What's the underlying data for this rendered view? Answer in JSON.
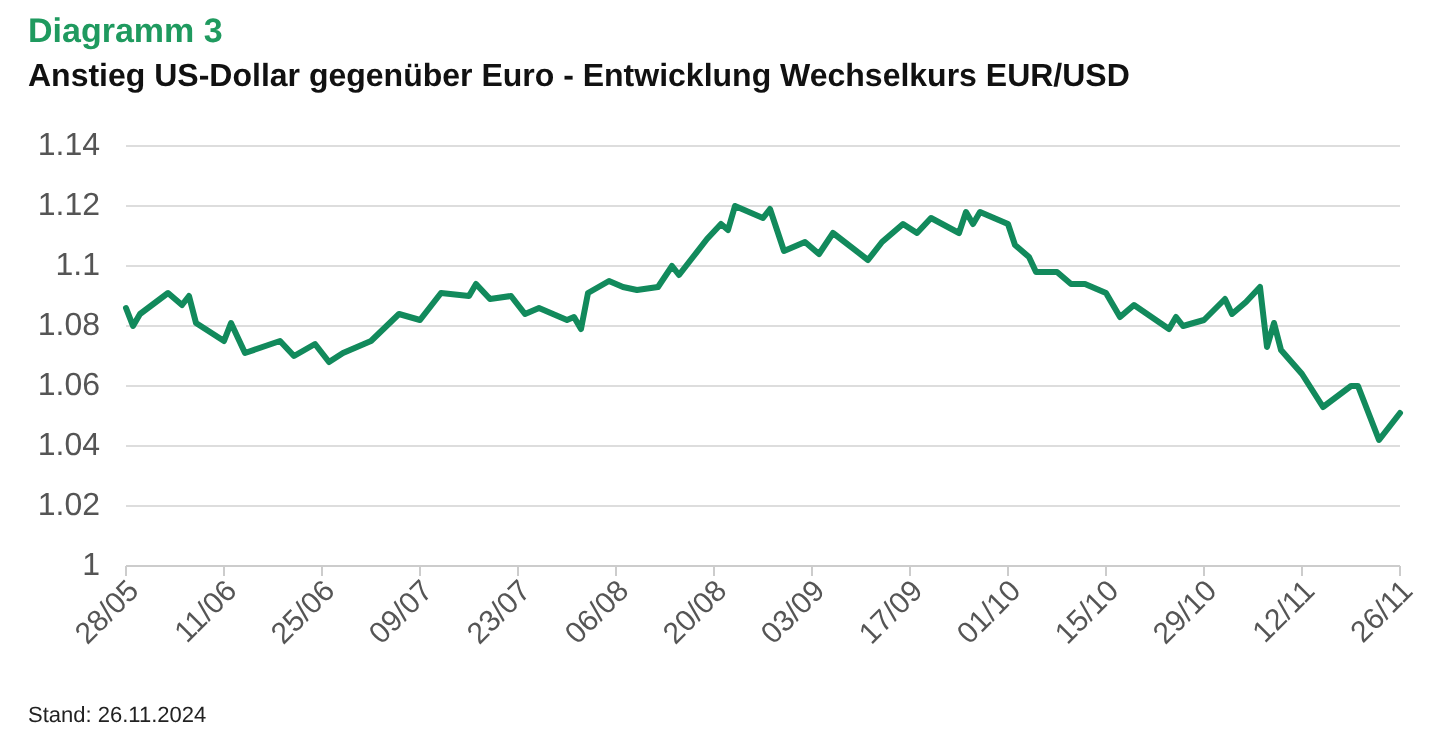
{
  "chart_data": {
    "type": "line",
    "title": "Diagramm 3",
    "subtitle": "Anstieg US-Dollar gegenüber Euro - Entwicklung Wechselkurs EUR/USD",
    "annotations": [
      "Stand: 26.11.2024"
    ],
    "x": [
      "2024-05-28",
      "2024-05-29",
      "2024-05-30",
      "2024-06-03",
      "2024-06-05",
      "2024-06-06",
      "2024-06-07",
      "2024-06-11",
      "2024-06-12",
      "2024-06-14",
      "2024-06-19",
      "2024-06-21",
      "2024-06-24",
      "2024-06-26",
      "2024-06-28",
      "2024-07-02",
      "2024-07-06",
      "2024-07-09",
      "2024-07-12",
      "2024-07-16",
      "2024-07-17",
      "2024-07-19",
      "2024-07-22",
      "2024-07-24",
      "2024-07-26",
      "2024-07-30",
      "2024-07-31",
      "2024-08-01",
      "2024-08-02",
      "2024-08-05",
      "2024-08-07",
      "2024-08-09",
      "2024-08-12",
      "2024-08-14",
      "2024-08-15",
      "2024-08-17",
      "2024-08-19",
      "2024-08-21",
      "2024-08-22",
      "2024-08-23",
      "2024-08-27",
      "2024-08-28",
      "2024-08-30",
      "2024-09-02",
      "2024-09-04",
      "2024-09-06",
      "2024-09-11",
      "2024-09-13",
      "2024-09-16",
      "2024-09-18",
      "2024-09-20",
      "2024-09-24",
      "2024-09-25",
      "2024-09-26",
      "2024-09-27",
      "2024-10-01",
      "2024-10-02",
      "2024-10-04",
      "2024-10-05",
      "2024-10-08",
      "2024-10-10",
      "2024-10-12",
      "2024-10-15",
      "2024-10-17",
      "2024-10-19",
      "2024-10-24",
      "2024-10-25",
      "2024-10-26",
      "2024-10-29",
      "2024-11-01",
      "2024-11-02",
      "2024-11-04",
      "2024-11-06",
      "2024-11-07",
      "2024-11-08",
      "2024-11-09",
      "2024-11-12",
      "2024-11-15",
      "2024-11-19",
      "2024-11-20",
      "2024-11-23",
      "2024-11-26"
    ],
    "series": [
      {
        "color": "#128a5c",
        "values": [
          1.086,
          1.08,
          1.084,
          1.091,
          1.087,
          1.09,
          1.081,
          1.075,
          1.081,
          1.071,
          1.075,
          1.07,
          1.074,
          1.068,
          1.071,
          1.075,
          1.084,
          1.082,
          1.091,
          1.09,
          1.094,
          1.089,
          1.09,
          1.084,
          1.086,
          1.082,
          1.083,
          1.079,
          1.091,
          1.095,
          1.093,
          1.092,
          1.093,
          1.1,
          1.097,
          1.103,
          1.109,
          1.114,
          1.112,
          1.12,
          1.116,
          1.119,
          1.105,
          1.108,
          1.104,
          1.111,
          1.102,
          1.108,
          1.114,
          1.111,
          1.116,
          1.111,
          1.118,
          1.114,
          1.118,
          1.114,
          1.107,
          1.103,
          1.098,
          1.098,
          1.094,
          1.094,
          1.091,
          1.083,
          1.087,
          1.079,
          1.083,
          1.08,
          1.082,
          1.089,
          1.084,
          1.088,
          1.093,
          1.073,
          1.081,
          1.072,
          1.064,
          1.053,
          1.06,
          1.06,
          1.042,
          1.051
        ]
      }
    ],
    "xlim": [
      "2024-05-28",
      "2024-11-26"
    ],
    "xticks": [
      {
        "value": "2024-05-28",
        "label": "28/05"
      },
      {
        "value": "2024-06-11",
        "label": "11/06"
      },
      {
        "value": "2024-06-25",
        "label": "25/06"
      },
      {
        "value": "2024-07-09",
        "label": "09/07"
      },
      {
        "value": "2024-07-23",
        "label": "23/07"
      },
      {
        "value": "2024-08-06",
        "label": "06/08"
      },
      {
        "value": "2024-08-20",
        "label": "20/08"
      },
      {
        "value": "2024-09-03",
        "label": "03/09"
      },
      {
        "value": "2024-09-17",
        "label": "17/09"
      },
      {
        "value": "2024-10-01",
        "label": "01/10"
      },
      {
        "value": "2024-10-15",
        "label": "15/10"
      },
      {
        "value": "2024-10-29",
        "label": "29/10"
      },
      {
        "value": "2024-11-12",
        "label": "12/11"
      },
      {
        "value": "2024-11-26",
        "label": "26/11"
      }
    ],
    "ylim": [
      1,
      1.14
    ],
    "yticks": [
      1,
      1.02,
      1.04,
      1.06,
      1.08,
      1.1,
      1.12,
      1.14
    ],
    "grid": "y",
    "marker": "none",
    "line_style": "solid"
  }
}
